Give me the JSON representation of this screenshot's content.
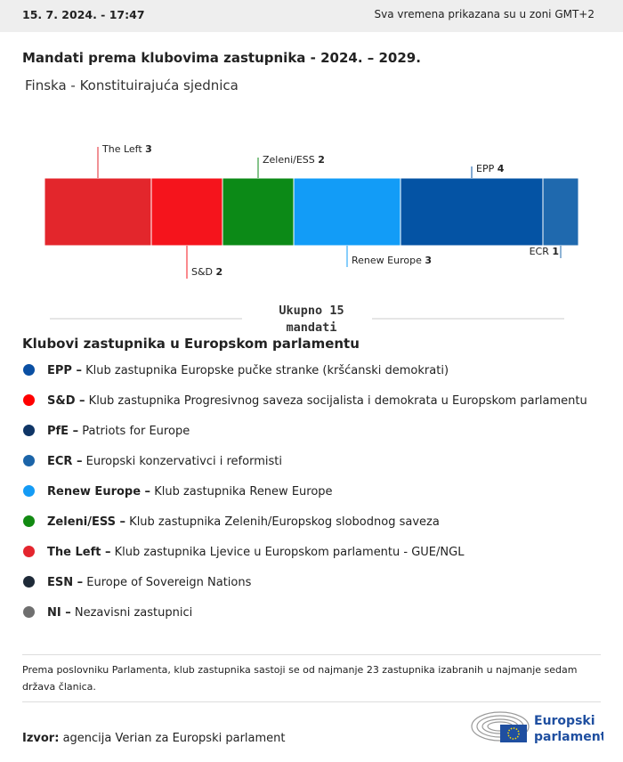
{
  "header": {
    "timestamp": "15. 7. 2024. - 17:47",
    "timezone_note": "Sva vremena prikazana su u zoni GMT+2"
  },
  "title": "Mandati prema klubovima zastupnika - 2024. – 2029.",
  "subtitle": "Finska - Konstituirajuća sjednica",
  "chart_data": {
    "type": "stacked-bar",
    "categories": [
      "The Left",
      "S&D",
      "Zeleni/ESS",
      "Renew Europe",
      "EPP",
      "ECR"
    ],
    "values": [
      3,
      2,
      2,
      3,
      4,
      1
    ],
    "colors": [
      "#e3262c",
      "#f5141c",
      "#0c8a17",
      "#129cf7",
      "#0453a4",
      "#1f69ae"
    ],
    "total_label": "Ukupno",
    "total": 15,
    "total_unit": "mandati"
  },
  "legend": {
    "title": "Klubovi zastupnika u Europskom parlamentu",
    "items": [
      {
        "abbr": "EPP –",
        "description": "Klub zastupnika Europske pučke stranke (kršćanski demokrati)",
        "color": "#0a4fa3"
      },
      {
        "abbr": "S&D –",
        "description": "Klub zastupnika Progresivnog saveza socijalista i demokrata u Europskom parlamentu",
        "color": "#ff0000"
      },
      {
        "abbr": "PfE –",
        "description": "Patriots for Europe",
        "color": "#0f3566"
      },
      {
        "abbr": "ECR –",
        "description": "Europski konzervativci i reformisti",
        "color": "#1b64a8"
      },
      {
        "abbr": "Renew Europe –",
        "description": "Klub zastupnika Renew Europe",
        "color": "#149bf5"
      },
      {
        "abbr": "Zeleni/ESS –",
        "description": "Klub zastupnika Zelenih/Europskog slobodnog saveza",
        "color": "#128a12"
      },
      {
        "abbr": "The Left –",
        "description": "Klub zastupnika Ljevice u Europskom parlamentu - GUE/NGL",
        "color": "#e4252e"
      },
      {
        "abbr": "ESN –",
        "description": "Europe of Sovereign Nations",
        "color": "#1e2a38"
      },
      {
        "abbr": "NI –",
        "description": "Nezavisni zastupnici",
        "color": "#6f6f6f"
      }
    ]
  },
  "footnote": "Prema poslovniku Parlamenta, klub zastupnika sastoji se od najmanje 23 zastupnika izabranih u najmanje sedam država članica.",
  "source": {
    "label": "Izvor:",
    "text": "agencija Verian za Europski parlament"
  },
  "logo": {
    "line1": "Europski",
    "line2": "parlament"
  }
}
